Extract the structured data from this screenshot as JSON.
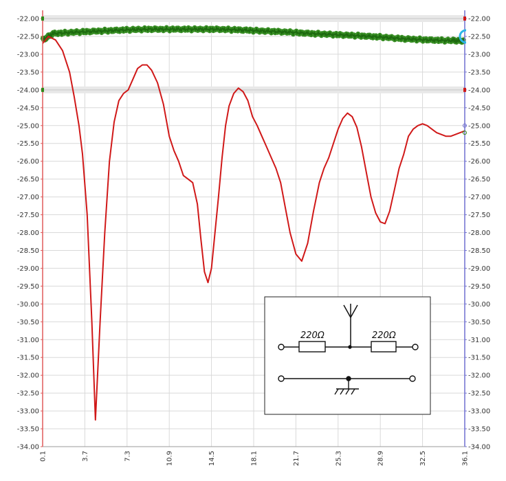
{
  "colors": {
    "background": "#ffffff",
    "grid": "#d9d9d9",
    "primary_trace": "#d01818",
    "secondary_trace": "#2f8a1a",
    "left_axis": "#e05a5a",
    "right_axis": "#6f6fd0",
    "marker_cyan": "#29b6e8"
  },
  "chart_data": {
    "type": "line",
    "x_ticks": [
      "0.1",
      "3.7",
      "7.3",
      "10.9",
      "14.5",
      "18.1",
      "21.7",
      "25.3",
      "28.9",
      "32.5",
      "36.1"
    ],
    "xlim": [
      0.1,
      36.1
    ],
    "ylim": [
      -34.0,
      -22.0
    ],
    "y_ticks": [
      "-22.00",
      "-22.50",
      "-23.00",
      "-23.50",
      "-24.00",
      "-24.50",
      "-25.00",
      "-25.50",
      "-26.00",
      "-26.50",
      "-27.00",
      "-27.50",
      "-28.00",
      "-28.50",
      "-29.00",
      "-29.50",
      "-30.00",
      "-30.50",
      "-31.00",
      "-31.50",
      "-32.00",
      "-32.50",
      "-33.00",
      "-33.50",
      "-34.00"
    ],
    "grid": true,
    "legend": "none",
    "series": [
      {
        "color": "#d01818",
        "x": [
          0.1,
          0.6,
          1.2,
          1.8,
          2.4,
          2.8,
          3.2,
          3.5,
          3.9,
          4.3,
          4.6,
          5.0,
          5.4,
          5.8,
          6.2,
          6.6,
          7.0,
          7.4,
          7.8,
          8.2,
          8.6,
          9.0,
          9.4,
          9.9,
          10.4,
          10.9,
          11.3,
          11.7,
          12.1,
          12.5,
          12.9,
          13.3,
          13.6,
          13.9,
          14.2,
          14.5,
          14.8,
          15.1,
          15.4,
          15.7,
          16.0,
          16.4,
          16.8,
          17.2,
          17.6,
          18.0,
          18.4,
          18.8,
          19.2,
          19.6,
          20.0,
          20.4,
          20.8,
          21.2,
          21.7,
          22.2,
          22.7,
          23.2,
          23.7,
          24.1,
          24.5,
          24.9,
          25.3,
          25.7,
          26.1,
          26.5,
          26.9,
          27.3,
          27.7,
          28.1,
          28.5,
          28.9,
          29.3,
          29.7,
          30.1,
          30.5,
          30.9,
          31.3,
          31.7,
          32.1,
          32.5,
          32.9,
          33.3,
          33.7,
          34.1,
          34.5,
          34.9,
          35.3,
          35.7,
          36.1
        ],
        "y": [
          -22.7,
          -22.5,
          -22.6,
          -22.9,
          -23.5,
          -24.2,
          -25.0,
          -25.8,
          -27.5,
          -30.5,
          -33.25,
          -30.5,
          -28.0,
          -26.0,
          -24.9,
          -24.3,
          -24.1,
          -24.0,
          -23.7,
          -23.4,
          -23.3,
          -23.3,
          -23.45,
          -23.8,
          -24.4,
          -25.3,
          -25.7,
          -26.0,
          -26.4,
          -26.5,
          -26.6,
          -27.2,
          -28.2,
          -29.1,
          -29.4,
          -29.0,
          -28.0,
          -27.0,
          -25.9,
          -25.0,
          -24.45,
          -24.1,
          -23.95,
          -24.05,
          -24.3,
          -24.75,
          -25.0,
          -25.3,
          -25.6,
          -25.9,
          -26.2,
          -26.6,
          -27.3,
          -28.0,
          -28.6,
          -28.8,
          -28.3,
          -27.4,
          -26.6,
          -26.2,
          -25.9,
          -25.5,
          -25.1,
          -24.8,
          -24.65,
          -24.75,
          -25.05,
          -25.6,
          -26.3,
          -27.0,
          -27.45,
          -27.7,
          -27.75,
          -27.4,
          -26.8,
          -26.2,
          -25.8,
          -25.3,
          -25.1,
          -25.0,
          -24.95,
          -25.0,
          -25.1,
          -25.2,
          -25.25,
          -25.3,
          -25.3,
          -25.25,
          -25.2,
          -25.15
        ],
        "x_visible_end": 36.1
      },
      {
        "color": "#2f8a1a",
        "x": [
          0.1,
          1.0,
          3.0,
          5.0,
          7.0,
          9.0,
          11.0,
          13.0,
          15.0,
          17.0,
          19.0,
          21.0,
          23.0,
          25.0,
          27.0,
          29.0,
          31.0,
          33.0,
          35.0,
          36.1
        ],
        "y": [
          -22.6,
          -22.42,
          -22.38,
          -22.35,
          -22.32,
          -22.3,
          -22.3,
          -22.3,
          -22.3,
          -22.32,
          -22.35,
          -22.38,
          -22.42,
          -22.45,
          -22.48,
          -22.52,
          -22.57,
          -22.6,
          -22.62,
          -22.63
        ]
      }
    ],
    "reference_bands_y": [
      -22.0,
      -24.0
    ]
  },
  "inset": {
    "resistor_left_label": "220Ω",
    "resistor_right_label": "220Ω"
  }
}
